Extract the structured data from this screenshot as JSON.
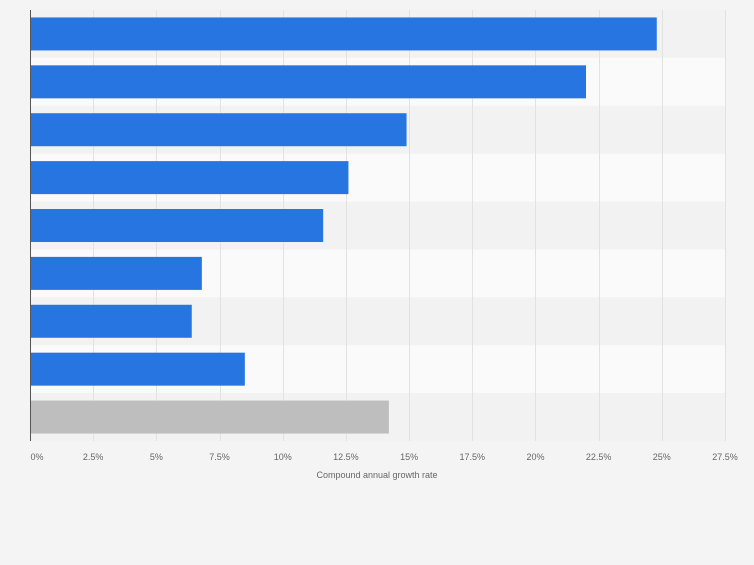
{
  "chart_data": {
    "type": "bar",
    "orientation": "horizontal",
    "categories": [
      "",
      "",
      "",
      "",
      "",
      "",
      "",
      "",
      ""
    ],
    "values": [
      24.8,
      22.0,
      14.9,
      12.6,
      11.6,
      6.8,
      6.4,
      8.5,
      14.2
    ],
    "bar_colors": [
      "#2775e0",
      "#2775e0",
      "#2775e0",
      "#2775e0",
      "#2775e0",
      "#2775e0",
      "#2775e0",
      "#2775e0",
      "#bebebe"
    ],
    "title": "",
    "xlabel": "Compound annual growth rate",
    "ylabel": "",
    "xlim": [
      0,
      27.5
    ],
    "xticks": [
      0,
      2.5,
      5,
      7.5,
      10,
      12.5,
      15,
      17.5,
      20,
      22.5,
      25,
      27.5
    ],
    "xtick_labels": [
      "0%",
      "2.5%",
      "5%",
      "7.5%",
      "10%",
      "12.5%",
      "15%",
      "17.5%",
      "20%",
      "22.5%",
      "25%",
      "27.5%"
    ],
    "grid": true,
    "legend": "none",
    "colors": {
      "page_background": "#f4f4f4",
      "band_light": "#fafafa",
      "band_dark": "#f2f2f2",
      "gridline": "#e2e2e2",
      "axis_line": "#555555",
      "tick_text": "#666666"
    }
  }
}
